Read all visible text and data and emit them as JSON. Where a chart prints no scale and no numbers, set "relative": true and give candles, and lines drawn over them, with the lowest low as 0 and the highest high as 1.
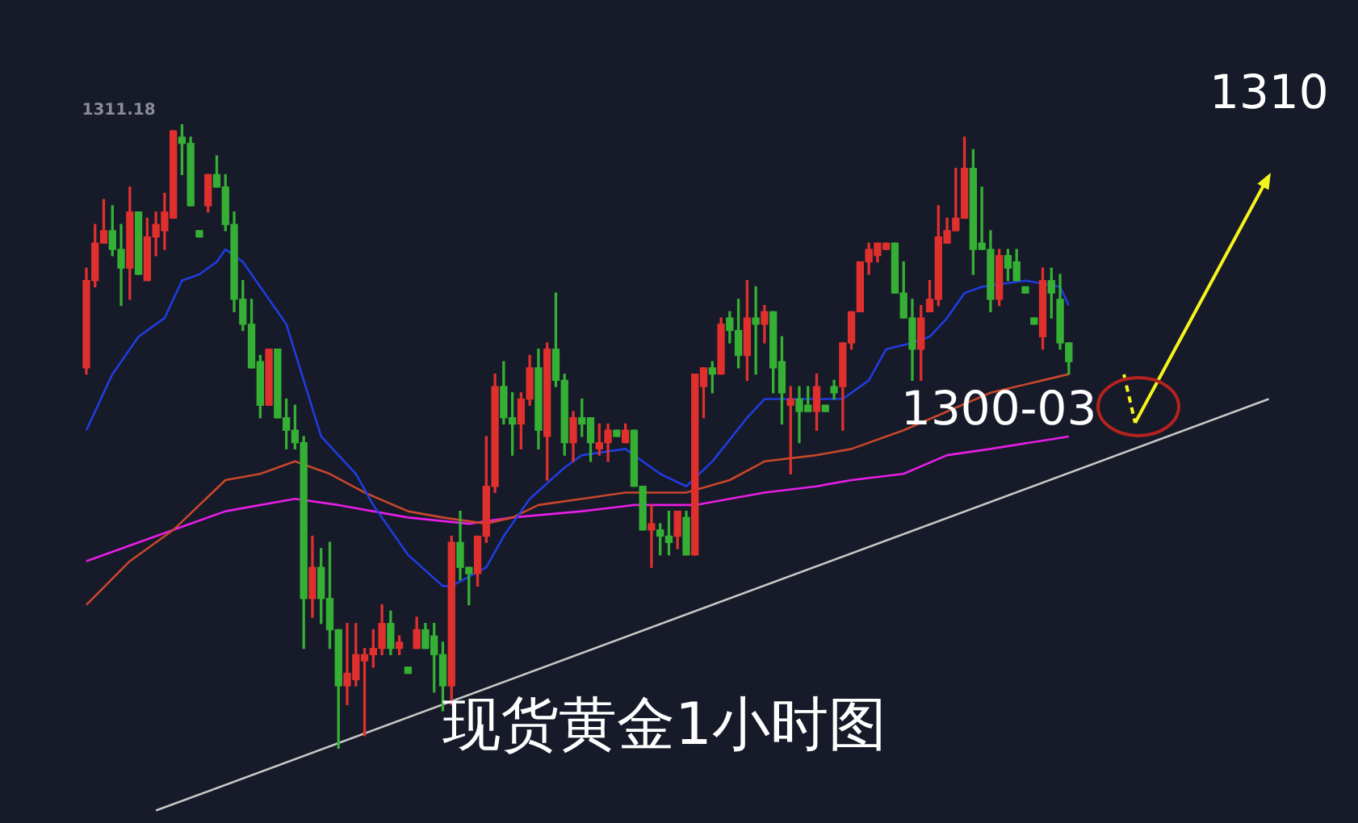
{
  "chart_data": {
    "type": "candlestick",
    "title": "现货黄金1小时图",
    "relative": true,
    "legend": false,
    "grid": false,
    "tick_labels": false,
    "marker": "none",
    "annotations": [
      "1311.18",
      "1300-03",
      "1310"
    ],
    "categories": [
      null,
      null,
      null,
      null,
      null,
      null,
      null,
      null,
      null,
      null,
      null,
      null,
      null,
      null,
      null,
      null,
      null,
      null,
      null,
      null,
      null,
      null,
      null,
      null,
      null,
      null,
      null,
      null,
      null,
      null,
      null,
      null,
      null,
      null,
      null,
      null,
      null,
      null,
      null,
      null,
      null,
      null,
      null,
      null,
      null,
      null,
      null,
      null,
      null,
      null,
      null,
      null,
      null,
      null,
      null,
      null,
      null,
      null,
      null,
      null,
      null,
      null,
      null,
      null,
      null,
      null,
      null,
      null,
      null,
      null,
      null,
      null,
      null,
      null,
      null,
      null,
      null,
      null,
      null,
      null,
      null,
      null,
      null,
      null,
      null,
      null,
      null,
      null,
      null,
      null,
      null,
      null,
      null,
      null,
      null,
      null,
      null,
      null,
      null,
      null,
      null,
      null,
      null,
      null,
      null,
      null,
      null,
      null,
      null,
      null,
      null,
      null,
      null,
      null,
      null,
      null,
      null,
      null,
      null,
      null,
      null,
      null,
      null,
      null,
      null,
      null,
      null,
      null,
      null,
      null,
      null,
      null,
      null,
      null,
      null,
      null,
      null
    ],
    "ohlc": [
      [
        0.61,
        0.77,
        0.6,
        0.75
      ],
      [
        0.75,
        0.84,
        0.74,
        0.81
      ],
      [
        0.81,
        0.88,
        0.81,
        0.83
      ],
      [
        0.83,
        0.87,
        0.79,
        0.8
      ],
      [
        0.8,
        0.84,
        0.71,
        0.77
      ],
      [
        0.77,
        0.9,
        0.72,
        0.86
      ],
      [
        0.86,
        0.86,
        0.76,
        0.76
      ],
      [
        0.75,
        0.85,
        0.75,
        0.82
      ],
      [
        0.82,
        0.86,
        0.79,
        0.84
      ],
      [
        0.83,
        0.89,
        0.8,
        0.86
      ],
      [
        0.85,
        0.99,
        0.85,
        0.99
      ],
      [
        0.98,
        1.0,
        0.92,
        0.97
      ],
      [
        0.97,
        0.98,
        0.87,
        0.87
      ],
      [
        0.83,
        0.83,
        0.82,
        0.82
      ],
      [
        0.87,
        0.92,
        0.86,
        0.92
      ],
      [
        0.92,
        0.95,
        0.9,
        0.9
      ],
      [
        0.9,
        0.92,
        0.83,
        0.84
      ],
      [
        0.84,
        0.86,
        0.7,
        0.72
      ],
      [
        0.72,
        0.75,
        0.67,
        0.68
      ],
      [
        0.68,
        0.72,
        0.61,
        0.61
      ],
      [
        0.62,
        0.63,
        0.53,
        0.55
      ],
      [
        0.55,
        0.64,
        0.55,
        0.64
      ],
      [
        0.64,
        0.64,
        0.53,
        0.53
      ],
      [
        0.53,
        0.56,
        0.48,
        0.51
      ],
      [
        0.51,
        0.55,
        0.48,
        0.49
      ],
      [
        0.49,
        0.5,
        0.16,
        0.24
      ],
      [
        0.24,
        0.34,
        0.21,
        0.29
      ],
      [
        0.29,
        0.32,
        0.2,
        0.24
      ],
      [
        0.24,
        0.33,
        0.16,
        0.19
      ],
      [
        0.19,
        0.19,
        0.0,
        0.1
      ],
      [
        0.1,
        0.2,
        0.07,
        0.12
      ],
      [
        0.11,
        0.2,
        0.1,
        0.15
      ],
      [
        0.14,
        0.16,
        0.02,
        0.15
      ],
      [
        0.15,
        0.19,
        0.13,
        0.16
      ],
      [
        0.16,
        0.23,
        0.15,
        0.2
      ],
      [
        0.2,
        0.22,
        0.15,
        0.16
      ],
      [
        0.16,
        0.18,
        0.15,
        0.17
      ],
      [
        0.13,
        0.13,
        0.12,
        0.12
      ],
      [
        0.16,
        0.21,
        0.16,
        0.19
      ],
      [
        0.19,
        0.2,
        0.16,
        0.16
      ],
      [
        0.18,
        0.2,
        0.09,
        0.15
      ],
      [
        0.15,
        0.17,
        0.06,
        0.1
      ],
      [
        0.1,
        0.34,
        0.07,
        0.33
      ],
      [
        0.33,
        0.38,
        0.27,
        0.29
      ],
      [
        0.29,
        0.29,
        0.23,
        0.28
      ],
      [
        0.28,
        0.34,
        0.26,
        0.34
      ],
      [
        0.34,
        0.5,
        0.33,
        0.42
      ],
      [
        0.42,
        0.6,
        0.41,
        0.58
      ],
      [
        0.58,
        0.62,
        0.52,
        0.53
      ],
      [
        0.53,
        0.57,
        0.47,
        0.52
      ],
      [
        0.52,
        0.57,
        0.48,
        0.56
      ],
      [
        0.56,
        0.63,
        0.55,
        0.61
      ],
      [
        0.61,
        0.64,
        0.48,
        0.51
      ],
      [
        0.5,
        0.65,
        0.43,
        0.64
      ],
      [
        0.64,
        0.73,
        0.58,
        0.59
      ],
      [
        0.59,
        0.6,
        0.47,
        0.49
      ],
      [
        0.49,
        0.54,
        0.46,
        0.53
      ],
      [
        0.53,
        0.56,
        0.5,
        0.52
      ],
      [
        0.53,
        0.53,
        0.46,
        0.49
      ],
      [
        0.48,
        0.52,
        0.47,
        0.49
      ],
      [
        0.49,
        0.52,
        0.46,
        0.51
      ],
      [
        0.51,
        0.51,
        0.5,
        0.5
      ],
      [
        0.49,
        0.52,
        0.49,
        0.51
      ],
      [
        0.51,
        0.51,
        0.42,
        0.42
      ],
      [
        0.42,
        0.42,
        0.35,
        0.35
      ],
      [
        0.35,
        0.39,
        0.29,
        0.36
      ],
      [
        0.35,
        0.36,
        0.31,
        0.34
      ],
      [
        0.34,
        0.38,
        0.31,
        0.33
      ],
      [
        0.34,
        0.38,
        0.32,
        0.38
      ],
      [
        0.37,
        0.38,
        0.31,
        0.31
      ],
      [
        0.31,
        0.6,
        0.31,
        0.6
      ],
      [
        0.58,
        0.61,
        0.53,
        0.61
      ],
      [
        0.61,
        0.62,
        0.57,
        0.6
      ],
      [
        0.6,
        0.69,
        0.6,
        0.68
      ],
      [
        0.69,
        0.7,
        0.65,
        0.67
      ],
      [
        0.67,
        0.72,
        0.61,
        0.63
      ],
      [
        0.63,
        0.75,
        0.59,
        0.69
      ],
      [
        0.69,
        0.74,
        0.6,
        0.68
      ],
      [
        0.68,
        0.71,
        0.65,
        0.7
      ],
      [
        0.7,
        0.7,
        0.57,
        0.61
      ],
      [
        0.62,
        0.66,
        0.52,
        0.57
      ],
      [
        0.55,
        0.58,
        0.44,
        0.56
      ],
      [
        0.56,
        0.58,
        0.49,
        0.54
      ],
      [
        0.55,
        0.58,
        0.54,
        0.54
      ],
      [
        0.54,
        0.6,
        0.51,
        0.58
      ],
      [
        0.55,
        0.55,
        0.54,
        0.54
      ],
      [
        0.58,
        0.59,
        0.56,
        0.57
      ],
      [
        0.58,
        0.65,
        0.51,
        0.65
      ],
      [
        0.65,
        0.7,
        0.64,
        0.7
      ],
      [
        0.7,
        0.78,
        0.7,
        0.78
      ],
      [
        0.78,
        0.81,
        0.76,
        0.8
      ],
      [
        0.79,
        0.81,
        0.78,
        0.81
      ],
      [
        0.8,
        0.81,
        0.8,
        0.81
      ],
      [
        0.81,
        0.81,
        0.73,
        0.73
      ],
      [
        0.73,
        0.78,
        0.69,
        0.69
      ],
      [
        0.69,
        0.72,
        0.59,
        0.64
      ],
      [
        0.64,
        0.71,
        0.59,
        0.69
      ],
      [
        0.7,
        0.75,
        0.7,
        0.72
      ],
      [
        0.72,
        0.87,
        0.71,
        0.82
      ],
      [
        0.81,
        0.85,
        0.81,
        0.83
      ],
      [
        0.83,
        0.93,
        0.83,
        0.85
      ],
      [
        0.85,
        0.98,
        0.85,
        0.93
      ],
      [
        0.93,
        0.96,
        0.76,
        0.8
      ],
      [
        0.81,
        0.9,
        0.8,
        0.8
      ],
      [
        0.8,
        0.83,
        0.7,
        0.72
      ],
      [
        0.72,
        0.8,
        0.71,
        0.79
      ],
      [
        0.79,
        0.8,
        0.75,
        0.77
      ],
      [
        0.78,
        0.8,
        0.75,
        0.75
      ],
      [
        0.74,
        0.74,
        0.73,
        0.73
      ],
      [
        0.69,
        0.69,
        0.68,
        0.68
      ],
      [
        0.66,
        0.77,
        0.64,
        0.75
      ],
      [
        0.75,
        0.77,
        0.69,
        0.73
      ],
      [
        0.72,
        0.76,
        0.64,
        0.65
      ],
      [
        0.65,
        0.65,
        0.6,
        0.62
      ],
      null,
      null,
      null,
      null,
      null,
      null,
      null,
      null,
      null,
      null,
      null,
      null,
      null,
      null,
      null,
      null,
      null,
      null,
      null,
      null,
      null,
      null,
      null
    ],
    "colors": [
      "#e0302e",
      "#e0302e",
      "#e0302e",
      "#35b035",
      "#35b035",
      "#e0302e",
      "#35b035",
      "#e0302e",
      "#e0302e",
      "#e0302e",
      "#e0302e",
      "#35b035",
      "#35b035",
      "#35b035",
      "#e0302e",
      "#35b035",
      "#35b035",
      "#35b035",
      "#35b035",
      "#35b035",
      "#35b035",
      "#e0302e",
      "#35b035",
      "#35b035",
      "#35b035",
      "#35b035",
      "#e0302e",
      "#35b035",
      "#35b035",
      "#35b035",
      "#e0302e",
      "#e0302e",
      "#e0302e",
      "#e0302e",
      "#e0302e",
      "#35b035",
      "#e0302e",
      "#35b035",
      "#e0302e",
      "#35b035",
      "#35b035",
      "#35b035",
      "#e0302e",
      "#35b035",
      "#35b035",
      "#e0302e",
      "#e0302e",
      "#e0302e",
      "#35b035",
      "#35b035",
      "#e0302e",
      "#e0302e",
      "#35b035",
      "#e0302e",
      "#35b035",
      "#35b035",
      "#e0302e",
      "#35b035",
      "#35b035",
      "#e0302e",
      "#e0302e",
      "#35b035",
      "#e0302e",
      "#35b035",
      "#35b035",
      "#e0302e",
      "#35b035",
      "#35b035",
      "#e0302e",
      "#35b035",
      "#e0302e",
      "#e0302e",
      "#35b035",
      "#e0302e",
      "#35b035",
      "#35b035",
      "#e0302e",
      "#35b035",
      "#e0302e",
      "#35b035",
      "#35b035",
      "#e0302e",
      "#35b035",
      "#35b035",
      "#e0302e",
      "#35b035",
      "#35b035",
      "#e0302e",
      "#e0302e",
      "#e0302e",
      "#e0302e",
      "#e0302e",
      "#e0302e",
      "#35b035",
      "#35b035",
      "#35b035",
      "#e0302e",
      "#e0302e",
      "#e0302e",
      "#e0302e",
      "#e0302e",
      "#e0302e",
      "#35b035",
      "#35b035",
      "#35b035",
      "#e0302e",
      "#35b035",
      "#35b035",
      "#35b035",
      "#35b035",
      "#e0302e",
      "#35b035",
      "#35b035",
      "#35b035",
      null,
      null,
      null,
      null,
      null,
      null,
      null,
      null,
      null,
      null,
      null,
      null,
      null,
      null,
      null,
      null,
      null,
      null,
      null,
      null,
      null,
      null,
      null
    ],
    "series": [
      {
        "type": "line",
        "color": "#1f3de0",
        "values": [
          0.51,
          null,
          null,
          0.6,
          null,
          null,
          0.66,
          null,
          null,
          0.69,
          null,
          0.75,
          null,
          0.76,
          null,
          0.78,
          0.8,
          null,
          0.78,
          null,
          0.74,
          null,
          null,
          0.68,
          null,
          0.59,
          null,
          0.5,
          null,
          null,
          null,
          0.44,
          null,
          0.39,
          null,
          null,
          null,
          0.31,
          null,
          null,
          null,
          0.26,
          0.26,
          null,
          null,
          null,
          0.29,
          null,
          0.34,
          null,
          null,
          0.4,
          null,
          null,
          null,
          0.45,
          null,
          0.47,
          null,
          null,
          null,
          null,
          0.48,
          null,
          null,
          null,
          0.44,
          null,
          null,
          0.42,
          null,
          null,
          0.46,
          null,
          null,
          null,
          0.53,
          null,
          0.56,
          null,
          null,
          null,
          null,
          null,
          0.56,
          null,
          null,
          0.56,
          null,
          null,
          0.59,
          null,
          0.64,
          null,
          null,
          0.65,
          null,
          0.66,
          null,
          0.69,
          null,
          0.73,
          null,
          0.74,
          null,
          null,
          null,
          null,
          0.75,
          null,
          null,
          null,
          0.74,
          0.71,
          null,
          null,
          null,
          null,
          null,
          null,
          null,
          null,
          null,
          null,
          null,
          null,
          null,
          null,
          null,
          null,
          null,
          null,
          null,
          null,
          null,
          null,
          null
        ]
      },
      {
        "type": "line",
        "color": "#c8472c",
        "values": [
          0.23,
          null,
          null,
          null,
          null,
          0.3,
          null,
          null,
          null,
          null,
          0.35,
          null,
          null,
          0.39,
          null,
          null,
          0.43,
          null,
          null,
          null,
          0.44,
          null,
          null,
          null,
          0.46,
          null,
          null,
          null,
          0.44,
          null,
          null,
          null,
          0.41,
          null,
          null,
          null,
          null,
          0.38,
          null,
          null,
          null,
          0.37,
          null,
          null,
          null,
          null,
          0.36,
          null,
          null,
          0.37,
          null,
          null,
          0.39,
          null,
          null,
          null,
          null,
          0.4,
          null,
          null,
          null,
          null,
          0.41,
          null,
          null,
          null,
          0.41,
          null,
          null,
          0.41,
          null,
          null,
          null,
          null,
          0.43,
          null,
          null,
          null,
          0.46,
          null,
          null,
          null,
          null,
          null,
          0.47,
          null,
          null,
          null,
          0.48,
          null,
          null,
          null,
          null,
          null,
          0.51,
          null,
          null,
          null,
          null,
          0.54,
          null,
          null,
          null,
          null,
          0.57,
          null,
          null,
          null,
          null,
          null,
          0.59,
          null,
          null,
          0.6,
          null,
          null,
          null,
          null,
          null,
          null,
          null,
          null,
          null,
          null,
          null,
          null,
          null,
          null,
          null,
          null,
          null,
          null,
          null,
          null,
          null,
          null,
          null
        ]
      },
      {
        "type": "line",
        "color": "#e81ee8",
        "values": [
          0.3,
          null,
          null,
          null,
          null,
          null,
          null,
          null,
          null,
          null,
          0.35,
          null,
          null,
          null,
          null,
          null,
          0.38,
          null,
          null,
          null,
          null,
          null,
          null,
          null,
          0.4,
          null,
          null,
          null,
          null,
          0.39,
          null,
          null,
          null,
          null,
          null,
          null,
          null,
          0.37,
          null,
          null,
          null,
          null,
          null,
          null,
          0.36,
          null,
          null,
          null,
          null,
          0.37,
          null,
          null,
          null,
          null,
          null,
          null,
          null,
          0.38,
          null,
          null,
          null,
          null,
          null,
          0.39,
          null,
          null,
          null,
          null,
          null,
          null,
          0.39,
          null,
          null,
          null,
          null,
          null,
          null,
          null,
          0.41,
          null,
          null,
          null,
          null,
          null,
          0.42,
          null,
          null,
          null,
          0.43,
          null,
          null,
          null,
          null,
          null,
          0.44,
          null,
          null,
          null,
          null,
          0.47,
          null,
          null,
          null,
          null,
          0.48,
          null,
          null,
          null,
          null,
          null,
          null,
          null,
          null,
          0.5,
          null,
          null,
          null,
          null,
          null,
          null,
          null,
          null,
          null,
          null,
          null,
          null,
          null,
          null,
          null,
          null,
          null,
          null,
          null,
          null,
          null,
          null,
          null
        ]
      },
      {
        "type": "line",
        "color": "#c8c8c8",
        "values": [
          null,
          null,
          null,
          null,
          null,
          null,
          null,
          null,
          -0.1,
          null,
          null,
          null,
          null,
          null,
          null,
          null,
          null,
          null,
          null,
          null,
          null,
          null,
          null,
          null,
          null,
          null,
          null,
          null,
          null,
          null,
          null,
          null,
          null,
          null,
          null,
          null,
          null,
          null,
          null,
          null,
          null,
          null,
          null,
          null,
          null,
          null,
          null,
          null,
          null,
          null,
          null,
          null,
          null,
          null,
          null,
          null,
          null,
          null,
          null,
          null,
          null,
          null,
          null,
          null,
          null,
          null,
          null,
          null,
          null,
          null,
          null,
          null,
          null,
          null,
          null,
          null,
          null,
          null,
          null,
          null,
          null,
          null,
          null,
          null,
          null,
          null,
          null,
          null,
          null,
          null,
          null,
          null,
          null,
          null,
          null,
          null,
          null,
          null,
          null,
          null,
          null,
          null,
          null,
          null,
          null,
          null,
          null,
          null,
          null,
          null,
          null,
          null,
          null,
          null,
          null,
          null,
          null,
          null,
          null,
          null,
          null,
          null,
          null,
          null,
          null,
          null,
          null,
          null,
          null,
          null,
          null,
          null,
          null,
          null,
          null,
          null,
          0.56
        ]
      }
    ]
  }
}
